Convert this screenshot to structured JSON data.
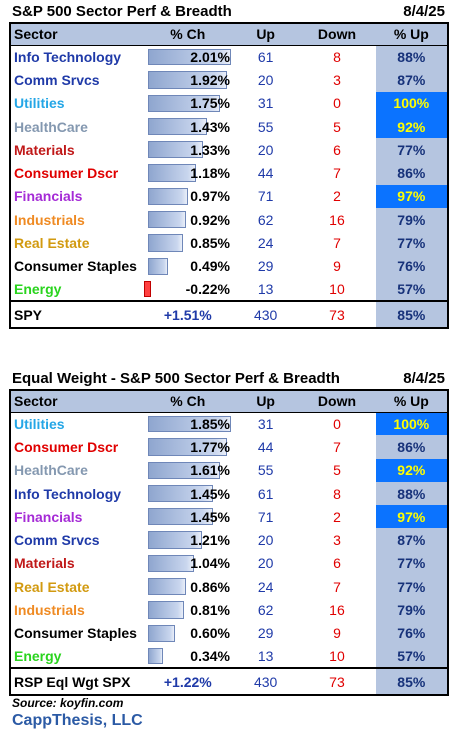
{
  "panel1": {
    "title": "S&P 500 Sector Perf & Breadth",
    "date": "8/4/25",
    "headers": {
      "sector": "Sector",
      "pct": "% Ch",
      "up": "Up",
      "down": "Down",
      "pctup": "% Up"
    },
    "rows": [
      {
        "sector": "Info Technology",
        "color": "#1f3aa8",
        "pct": "2.01%",
        "pct_value": 2.01,
        "up": "61",
        "down": "8",
        "pctup": "88%",
        "hi": false
      },
      {
        "sector": "Comm Srvcs",
        "color": "#1f3aa8",
        "pct": "1.92%",
        "pct_value": 1.92,
        "up": "20",
        "down": "3",
        "pctup": "87%",
        "hi": false
      },
      {
        "sector": "Utilities",
        "color": "#24a6e6",
        "pct": "1.75%",
        "pct_value": 1.75,
        "up": "31",
        "down": "0",
        "pctup": "100%",
        "hi": true
      },
      {
        "sector": "HealthCare",
        "color": "#8498b0",
        "pct": "1.43%",
        "pct_value": 1.43,
        "up": "55",
        "down": "5",
        "pctup": "92%",
        "hi": true
      },
      {
        "sector": "Materials",
        "color": "#c01818",
        "pct": "1.33%",
        "pct_value": 1.33,
        "up": "20",
        "down": "6",
        "pctup": "77%",
        "hi": false
      },
      {
        "sector": "Consumer Dscr",
        "color": "#e00000",
        "pct": "1.18%",
        "pct_value": 1.18,
        "up": "44",
        "down": "7",
        "pctup": "86%",
        "hi": false
      },
      {
        "sector": "Financials",
        "color": "#a52bd6",
        "pct": "0.97%",
        "pct_value": 0.97,
        "up": "71",
        "down": "2",
        "pctup": "97%",
        "hi": true
      },
      {
        "sector": "Industrials",
        "color": "#ef8a22",
        "pct": "0.92%",
        "pct_value": 0.92,
        "up": "62",
        "down": "16",
        "pctup": "79%",
        "hi": false
      },
      {
        "sector": "Real Estate",
        "color": "#d29a10",
        "pct": "0.85%",
        "pct_value": 0.85,
        "up": "24",
        "down": "7",
        "pctup": "77%",
        "hi": false
      },
      {
        "sector": "Consumer Staples",
        "color": "#000000",
        "pct": "0.49%",
        "pct_value": 0.49,
        "up": "29",
        "down": "9",
        "pctup": "76%",
        "hi": false
      },
      {
        "sector": "Energy",
        "color": "#2ad41e",
        "pct": "-0.22%",
        "pct_value": -0.22,
        "up": "13",
        "down": "10",
        "pctup": "57%",
        "hi": false
      }
    ],
    "total": {
      "label": "SPY",
      "pct": "+1.51%",
      "up": "430",
      "down": "73",
      "pctup": "85%"
    }
  },
  "panel2": {
    "title": "Equal Weight - S&P 500 Sector Perf & Breadth",
    "date": "8/4/25",
    "headers": {
      "sector": "Sector",
      "pct": "% Ch",
      "up": "Up",
      "down": "Down",
      "pctup": "% Up"
    },
    "rows": [
      {
        "sector": "Utilities",
        "color": "#24a6e6",
        "pct": "1.85%",
        "pct_value": 1.85,
        "up": "31",
        "down": "0",
        "pctup": "100%",
        "hi": true
      },
      {
        "sector": "Consumer Dscr",
        "color": "#e00000",
        "pct": "1.77%",
        "pct_value": 1.77,
        "up": "44",
        "down": "7",
        "pctup": "86%",
        "hi": false
      },
      {
        "sector": "HealthCare",
        "color": "#8498b0",
        "pct": "1.61%",
        "pct_value": 1.61,
        "up": "55",
        "down": "5",
        "pctup": "92%",
        "hi": true
      },
      {
        "sector": "Info Technology",
        "color": "#1f3aa8",
        "pct": "1.45%",
        "pct_value": 1.45,
        "up": "61",
        "down": "8",
        "pctup": "88%",
        "hi": false
      },
      {
        "sector": "Financials",
        "color": "#a52bd6",
        "pct": "1.45%",
        "pct_value": 1.45,
        "up": "71",
        "down": "2",
        "pctup": "97%",
        "hi": true
      },
      {
        "sector": "Comm Srvcs",
        "color": "#1f3aa8",
        "pct": "1.21%",
        "pct_value": 1.21,
        "up": "20",
        "down": "3",
        "pctup": "87%",
        "hi": false
      },
      {
        "sector": "Materials",
        "color": "#c01818",
        "pct": "1.04%",
        "pct_value": 1.04,
        "up": "20",
        "down": "6",
        "pctup": "77%",
        "hi": false
      },
      {
        "sector": "Real Estate",
        "color": "#d29a10",
        "pct": "0.86%",
        "pct_value": 0.86,
        "up": "24",
        "down": "7",
        "pctup": "77%",
        "hi": false
      },
      {
        "sector": "Industrials",
        "color": "#ef8a22",
        "pct": "0.81%",
        "pct_value": 0.81,
        "up": "62",
        "down": "16",
        "pctup": "79%",
        "hi": false
      },
      {
        "sector": "Consumer Staples",
        "color": "#000000",
        "pct": "0.60%",
        "pct_value": 0.6,
        "up": "29",
        "down": "9",
        "pctup": "76%",
        "hi": false
      },
      {
        "sector": "Energy",
        "color": "#2ad41e",
        "pct": "0.34%",
        "pct_value": 0.34,
        "up": "13",
        "down": "10",
        "pctup": "57%",
        "hi": false
      }
    ],
    "total": {
      "label": "RSP Eql Wgt SPX",
      "pct": "+1.22%",
      "up": "430",
      "down": "73",
      "pctup": "85%"
    }
  },
  "footer": {
    "source": "Source: koyfin.com",
    "brand": "CappThesis, LLC"
  }
}
